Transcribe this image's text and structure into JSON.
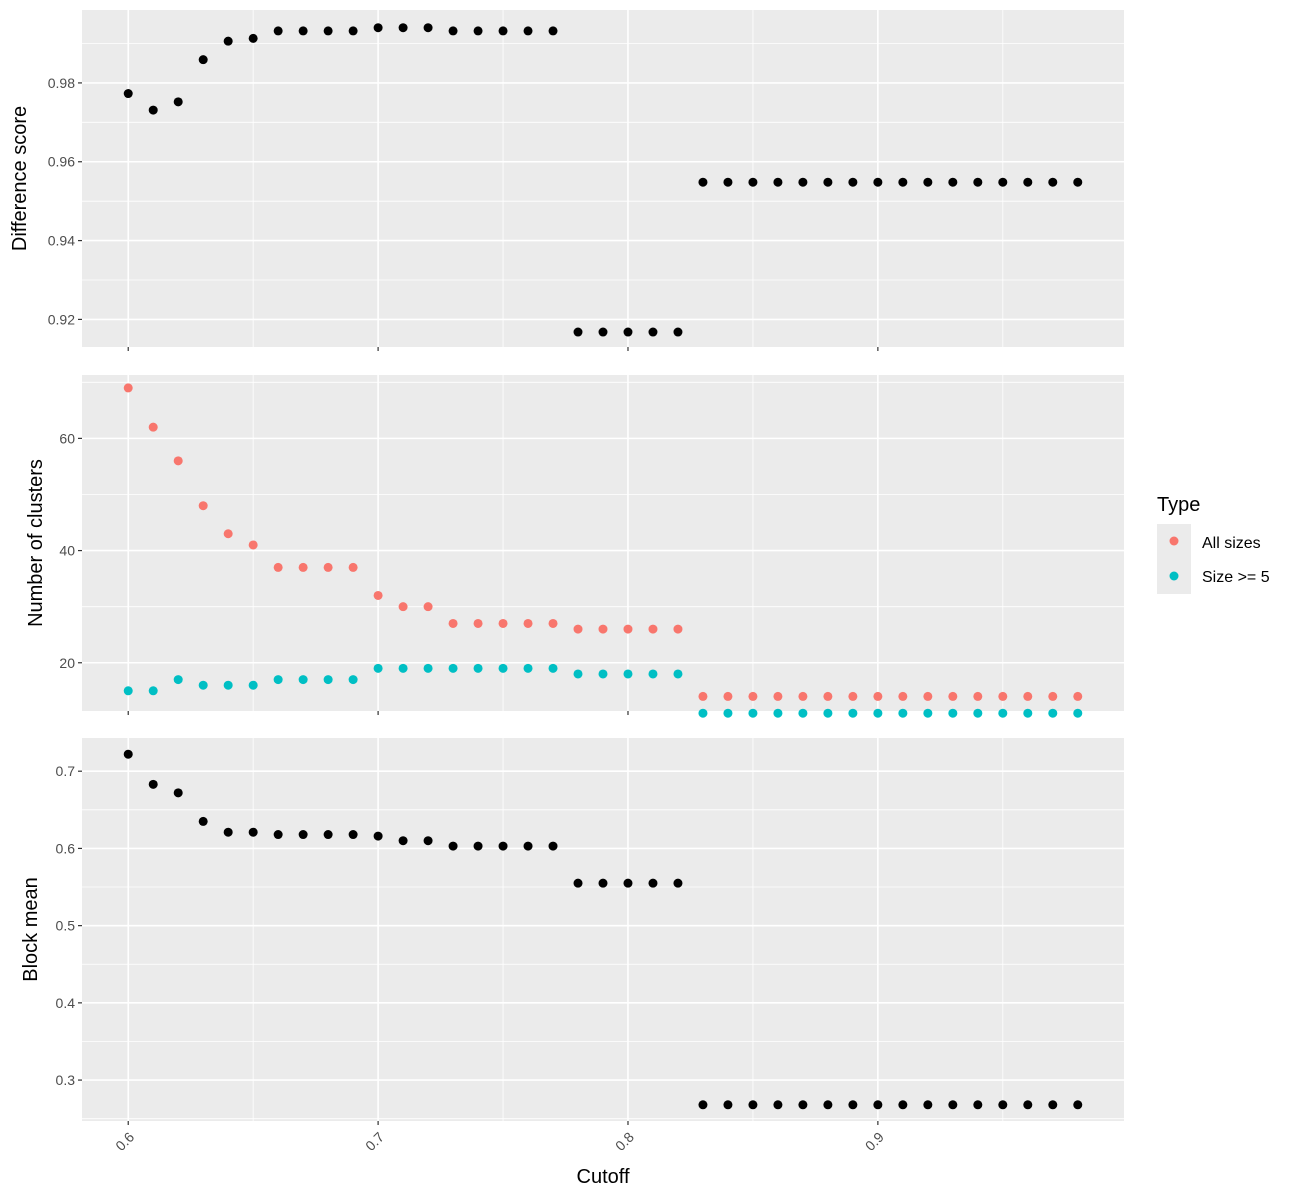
{
  "chart_data": [
    {
      "type": "scatter",
      "panel": "top",
      "ylabel": "Difference score",
      "yticks": [
        0.92,
        0.94,
        0.96,
        0.98
      ],
      "ylim": [
        0.913,
        0.9985
      ],
      "xlim": [
        0.5815,
        0.9985
      ],
      "series": [
        {
          "color": "#000000",
          "x": [
            0.6,
            0.61,
            0.62,
            0.63,
            0.64,
            0.65,
            0.66,
            0.67,
            0.68,
            0.69,
            0.7,
            0.71,
            0.72,
            0.73,
            0.74,
            0.75,
            0.76,
            0.77,
            0.78,
            0.79,
            0.8,
            0.81,
            0.82,
            0.83,
            0.84,
            0.85,
            0.86,
            0.87,
            0.88,
            0.89,
            0.9,
            0.91,
            0.92,
            0.93,
            0.94,
            0.95,
            0.96,
            0.97,
            0.98
          ],
          "y": [
            0.9773,
            0.9731,
            0.9752,
            0.9859,
            0.9906,
            0.9913,
            0.9932,
            0.9932,
            0.9932,
            0.9932,
            0.994,
            0.994,
            0.994,
            0.9932,
            0.9932,
            0.9932,
            0.9932,
            0.9932,
            0.9168,
            0.9168,
            0.9168,
            0.9168,
            0.9168,
            0.9548,
            0.9548,
            0.9548,
            0.9548,
            0.9548,
            0.9548,
            0.9548,
            0.9548,
            0.9548,
            0.9548,
            0.9548,
            0.9548,
            0.9548,
            0.9548,
            0.9548,
            0.9548
          ]
        }
      ]
    },
    {
      "type": "scatter",
      "panel": "middle",
      "ylabel": "Number of clusters",
      "yticks": [
        20,
        40,
        60
      ],
      "ylim": [
        11.4,
        71.3
      ],
      "xlim": [
        0.5815,
        0.9985
      ],
      "series": [
        {
          "name": "All sizes",
          "color": "#F8766D",
          "x": [
            0.6,
            0.61,
            0.62,
            0.63,
            0.64,
            0.65,
            0.66,
            0.67,
            0.68,
            0.69,
            0.7,
            0.71,
            0.72,
            0.73,
            0.74,
            0.75,
            0.76,
            0.77,
            0.78,
            0.79,
            0.8,
            0.81,
            0.82,
            0.83,
            0.84,
            0.85,
            0.86,
            0.87,
            0.88,
            0.89,
            0.9,
            0.91,
            0.92,
            0.93,
            0.94,
            0.95,
            0.96,
            0.97,
            0.98
          ],
          "y": [
            69,
            62,
            56,
            48,
            43,
            41,
            37,
            37,
            37,
            37,
            32,
            30,
            30,
            27,
            27,
            27,
            27,
            27,
            26,
            26,
            26,
            26,
            26,
            14,
            14,
            14,
            14,
            14,
            14,
            14,
            14,
            14,
            14,
            14,
            14,
            14,
            14,
            14,
            14
          ]
        },
        {
          "name": "Size >= 5",
          "color": "#00BFC4",
          "x": [
            0.6,
            0.61,
            0.62,
            0.63,
            0.64,
            0.65,
            0.66,
            0.67,
            0.68,
            0.69,
            0.7,
            0.71,
            0.72,
            0.73,
            0.74,
            0.75,
            0.76,
            0.77,
            0.78,
            0.79,
            0.8,
            0.81,
            0.82,
            0.83,
            0.84,
            0.85,
            0.86,
            0.87,
            0.88,
            0.89,
            0.9,
            0.91,
            0.92,
            0.93,
            0.94,
            0.95,
            0.96,
            0.97,
            0.98
          ],
          "y": [
            15,
            15,
            17,
            16,
            16,
            16,
            17,
            17,
            17,
            17,
            19,
            19,
            19,
            19,
            19,
            19,
            19,
            19,
            18,
            18,
            18,
            18,
            18,
            11,
            11,
            11,
            11,
            11,
            11,
            11,
            11,
            11,
            11,
            11,
            11,
            11,
            11,
            11,
            11
          ]
        }
      ],
      "legend": {
        "title": "Type",
        "position": "right",
        "entries": [
          {
            "label": "All sizes",
            "color": "#F8766D"
          },
          {
            "label": "Size >= 5",
            "color": "#00BFC4"
          }
        ]
      }
    },
    {
      "type": "scatter",
      "panel": "bottom",
      "ylabel": "Block mean",
      "xlabel": "Cutoff",
      "xticks": [
        0.6,
        0.7,
        0.8,
        0.9
      ],
      "yticks": [
        0.3,
        0.4,
        0.5,
        0.6,
        0.7
      ],
      "ylim": [
        0.247,
        0.743
      ],
      "xlim": [
        0.5815,
        0.9985
      ],
      "series": [
        {
          "color": "#000000",
          "x": [
            0.6,
            0.61,
            0.62,
            0.63,
            0.64,
            0.65,
            0.66,
            0.67,
            0.68,
            0.69,
            0.7,
            0.71,
            0.72,
            0.73,
            0.74,
            0.75,
            0.76,
            0.77,
            0.78,
            0.79,
            0.8,
            0.81,
            0.82,
            0.83,
            0.84,
            0.85,
            0.86,
            0.87,
            0.88,
            0.89,
            0.9,
            0.91,
            0.92,
            0.93,
            0.94,
            0.95,
            0.96,
            0.97,
            0.98
          ],
          "y": [
            0.722,
            0.683,
            0.672,
            0.635,
            0.621,
            0.621,
            0.618,
            0.618,
            0.618,
            0.618,
            0.616,
            0.61,
            0.61,
            0.603,
            0.603,
            0.603,
            0.603,
            0.603,
            0.555,
            0.555,
            0.555,
            0.555,
            0.555,
            0.268,
            0.268,
            0.268,
            0.268,
            0.268,
            0.268,
            0.268,
            0.268,
            0.268,
            0.268,
            0.268,
            0.268,
            0.268,
            0.268,
            0.268,
            0.268
          ]
        }
      ]
    }
  ],
  "style": {
    "panel_background": "#EBEBEB",
    "grid_color": "#FFFFFF",
    "tick_color": "#333333",
    "tick_label_color": "#4D4D4D",
    "axis_title_color": "#000000"
  }
}
